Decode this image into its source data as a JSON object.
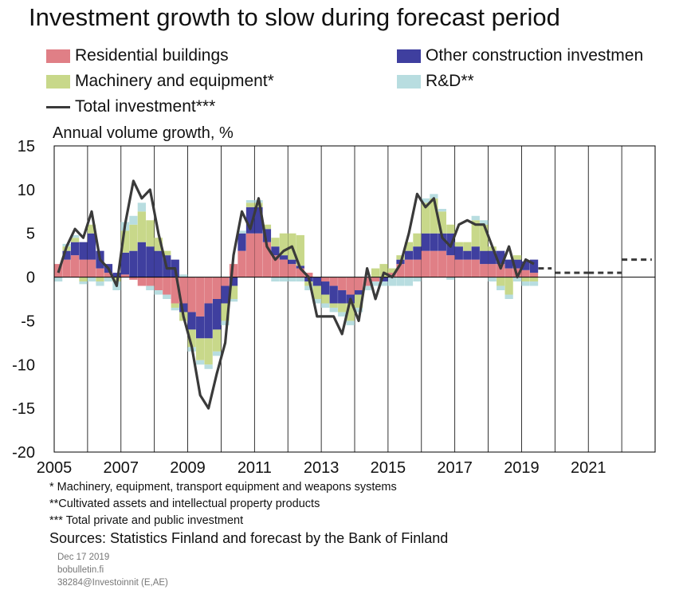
{
  "chart_data": {
    "type": "bar",
    "subtype": "stacked-bar-with-line",
    "title": "Investment growth to slow during forecast period",
    "ylabel": "Annual volume growth, %",
    "xlabel": "",
    "ylim": [
      -20,
      15
    ],
    "yticks": [
      15,
      10,
      5,
      0,
      -5,
      -10,
      -15,
      -20
    ],
    "xlim": [
      2005,
      2023
    ],
    "xticks": [
      2005,
      2007,
      2009,
      2011,
      2013,
      2015,
      2017,
      2019,
      2021
    ],
    "grid": "vertical",
    "legend_position": "top",
    "x": [
      2005.0,
      2005.25,
      2005.5,
      2005.75,
      2006.0,
      2006.25,
      2006.5,
      2006.75,
      2007.0,
      2007.25,
      2007.5,
      2007.75,
      2008.0,
      2008.25,
      2008.5,
      2008.75,
      2009.0,
      2009.25,
      2009.5,
      2009.75,
      2010.0,
      2010.25,
      2010.5,
      2010.75,
      2011.0,
      2011.25,
      2011.5,
      2011.75,
      2012.0,
      2012.25,
      2012.5,
      2012.75,
      2013.0,
      2013.25,
      2013.5,
      2013.75,
      2014.0,
      2014.25,
      2014.5,
      2014.75,
      2015.0,
      2015.25,
      2015.5,
      2015.75,
      2016.0,
      2016.25,
      2016.5,
      2016.75,
      2017.0,
      2017.25,
      2017.5,
      2017.75,
      2018.0,
      2018.25,
      2018.5,
      2018.75,
      2019.0,
      2019.25
    ],
    "series": [
      {
        "name": "Residential buildings",
        "color": "#e07f86",
        "values": [
          1.5,
          2.0,
          2.5,
          2.0,
          2.0,
          1.0,
          0.5,
          0.0,
          0.3,
          -0.3,
          -1.0,
          -1.0,
          -1.5,
          -2.0,
          -3.0,
          -3.0,
          -4.0,
          -4.5,
          -3.0,
          -2.5,
          -1.0,
          1.5,
          3.0,
          5.0,
          5.0,
          4.0,
          2.5,
          2.0,
          1.5,
          1.0,
          0.5,
          0.0,
          -0.5,
          -1.0,
          -1.5,
          -2.0,
          -1.5,
          -1.0,
          -0.5,
          0.0,
          0.5,
          1.5,
          2.0,
          2.0,
          3.0,
          3.0,
          3.0,
          2.5,
          2.0,
          2.0,
          2.0,
          1.5,
          1.5,
          1.5,
          1.0,
          1.0,
          0.8,
          0.5
        ]
      },
      {
        "name": "Other construction investmen",
        "color": "#3f3f9f",
        "values": [
          0.0,
          1.0,
          1.5,
          2.0,
          3.0,
          2.0,
          1.0,
          0.5,
          2.5,
          3.0,
          4.0,
          3.5,
          3.0,
          2.5,
          2.0,
          -1.0,
          -2.0,
          -2.5,
          -4.0,
          -3.5,
          -2.0,
          -1.0,
          2.0,
          3.0,
          3.0,
          1.5,
          1.0,
          0.5,
          0.5,
          0.3,
          -0.5,
          -1.0,
          -1.5,
          -2.0,
          -1.5,
          -1.0,
          -0.5,
          0.0,
          0.0,
          -0.5,
          0.0,
          0.5,
          1.0,
          1.5,
          2.0,
          2.0,
          2.0,
          2.5,
          1.5,
          1.0,
          1.5,
          1.5,
          1.5,
          1.5,
          1.0,
          1.0,
          1.0,
          1.5
        ]
      },
      {
        "name": "Machinery and equipment*",
        "color": "#c8d88a",
        "values": [
          0.0,
          0.5,
          0.5,
          -0.5,
          1.0,
          -0.5,
          0.0,
          -0.5,
          2.5,
          3.0,
          3.5,
          3.0,
          1.5,
          0.5,
          -0.5,
          -1.0,
          -2.0,
          -2.5,
          -3.0,
          -2.5,
          -2.0,
          -1.5,
          0.0,
          0.5,
          0.5,
          0.5,
          1.0,
          2.5,
          3.0,
          3.5,
          -0.5,
          -1.5,
          -1.0,
          -0.5,
          -1.0,
          -2.0,
          -1.5,
          0.0,
          1.0,
          1.5,
          0.5,
          0.5,
          1.0,
          1.5,
          3.5,
          4.0,
          2.5,
          1.0,
          0.5,
          1.0,
          3.0,
          3.0,
          0.5,
          -1.0,
          -2.0,
          0.5,
          -0.5,
          -0.5
        ]
      },
      {
        "name": "R&D**",
        "color": "#b8dde0",
        "values": [
          -0.5,
          0.3,
          0.3,
          -0.3,
          -0.5,
          -0.5,
          -0.5,
          -1.0,
          1.0,
          1.0,
          1.0,
          -0.5,
          -0.5,
          -0.5,
          -0.3,
          0.3,
          -0.5,
          -0.5,
          -0.5,
          -0.5,
          -0.5,
          -0.3,
          0.3,
          0.3,
          0.3,
          0.0,
          -0.5,
          -0.5,
          -0.5,
          -0.5,
          -0.5,
          -0.5,
          -0.5,
          -0.5,
          -0.5,
          -0.5,
          -0.5,
          -0.5,
          -0.5,
          -0.5,
          -1.0,
          -1.0,
          -1.0,
          -0.5,
          0.5,
          0.5,
          0.3,
          -0.3,
          0.0,
          0.0,
          0.5,
          0.5,
          -0.5,
          -0.5,
          -0.5,
          -0.5,
          -0.5,
          -0.5
        ]
      },
      {
        "name": "Total investment***",
        "color": "#3a3a3a",
        "type": "line",
        "values": [
          0.5,
          3.5,
          5.5,
          4.5,
          7.5,
          2.0,
          1.0,
          -1.0,
          6.0,
          11.0,
          9.0,
          10.0,
          5.0,
          1.0,
          1.0,
          -4.5,
          -8.0,
          -13.5,
          -15.0,
          -11.0,
          -7.5,
          2.5,
          7.5,
          5.5,
          9.0,
          3.5,
          2.0,
          3.0,
          3.5,
          1.0,
          0.0,
          -4.5,
          -4.5,
          -4.5,
          -6.5,
          -2.5,
          -5.0,
          1.0,
          -2.5,
          0.5,
          0.0,
          1.5,
          5.0,
          9.5,
          8.0,
          9.0,
          4.5,
          3.5,
          6.0,
          6.5,
          6.0,
          6.0,
          3.5,
          1.0,
          3.5,
          0.0,
          2.0,
          1.5
        ]
      }
    ],
    "forecast": {
      "style": "dashed",
      "segments": [
        {
          "x": [
            2019.5,
            2019.9
          ],
          "value": 1.0
        },
        {
          "x": [
            2020.0,
            2021.0
          ],
          "value": 0.5
        },
        {
          "x": [
            2021.0,
            2022.0
          ],
          "value": 0.5
        },
        {
          "x": [
            2022.0,
            2022.9
          ],
          "value": 2.0
        }
      ]
    }
  },
  "legend": {
    "residential": "Residential buildings",
    "other_construction": "Other construction investmen",
    "machinery": "Machinery and equipment*",
    "rd": "R&D**",
    "total": "Total investment***"
  },
  "footnotes": [
    "* Machinery, equipment, transport equipment and weapons systems",
    "**Cultivated assets and intellectual property products",
    "*** Total private and public investment"
  ],
  "source": "Sources: Statistics Finland and forecast by the Bank of Finland",
  "meta": {
    "date": "Dec 17 2019",
    "site": "bobulletin.fi",
    "code": "38284@Investoinnit  (E,AE)"
  }
}
